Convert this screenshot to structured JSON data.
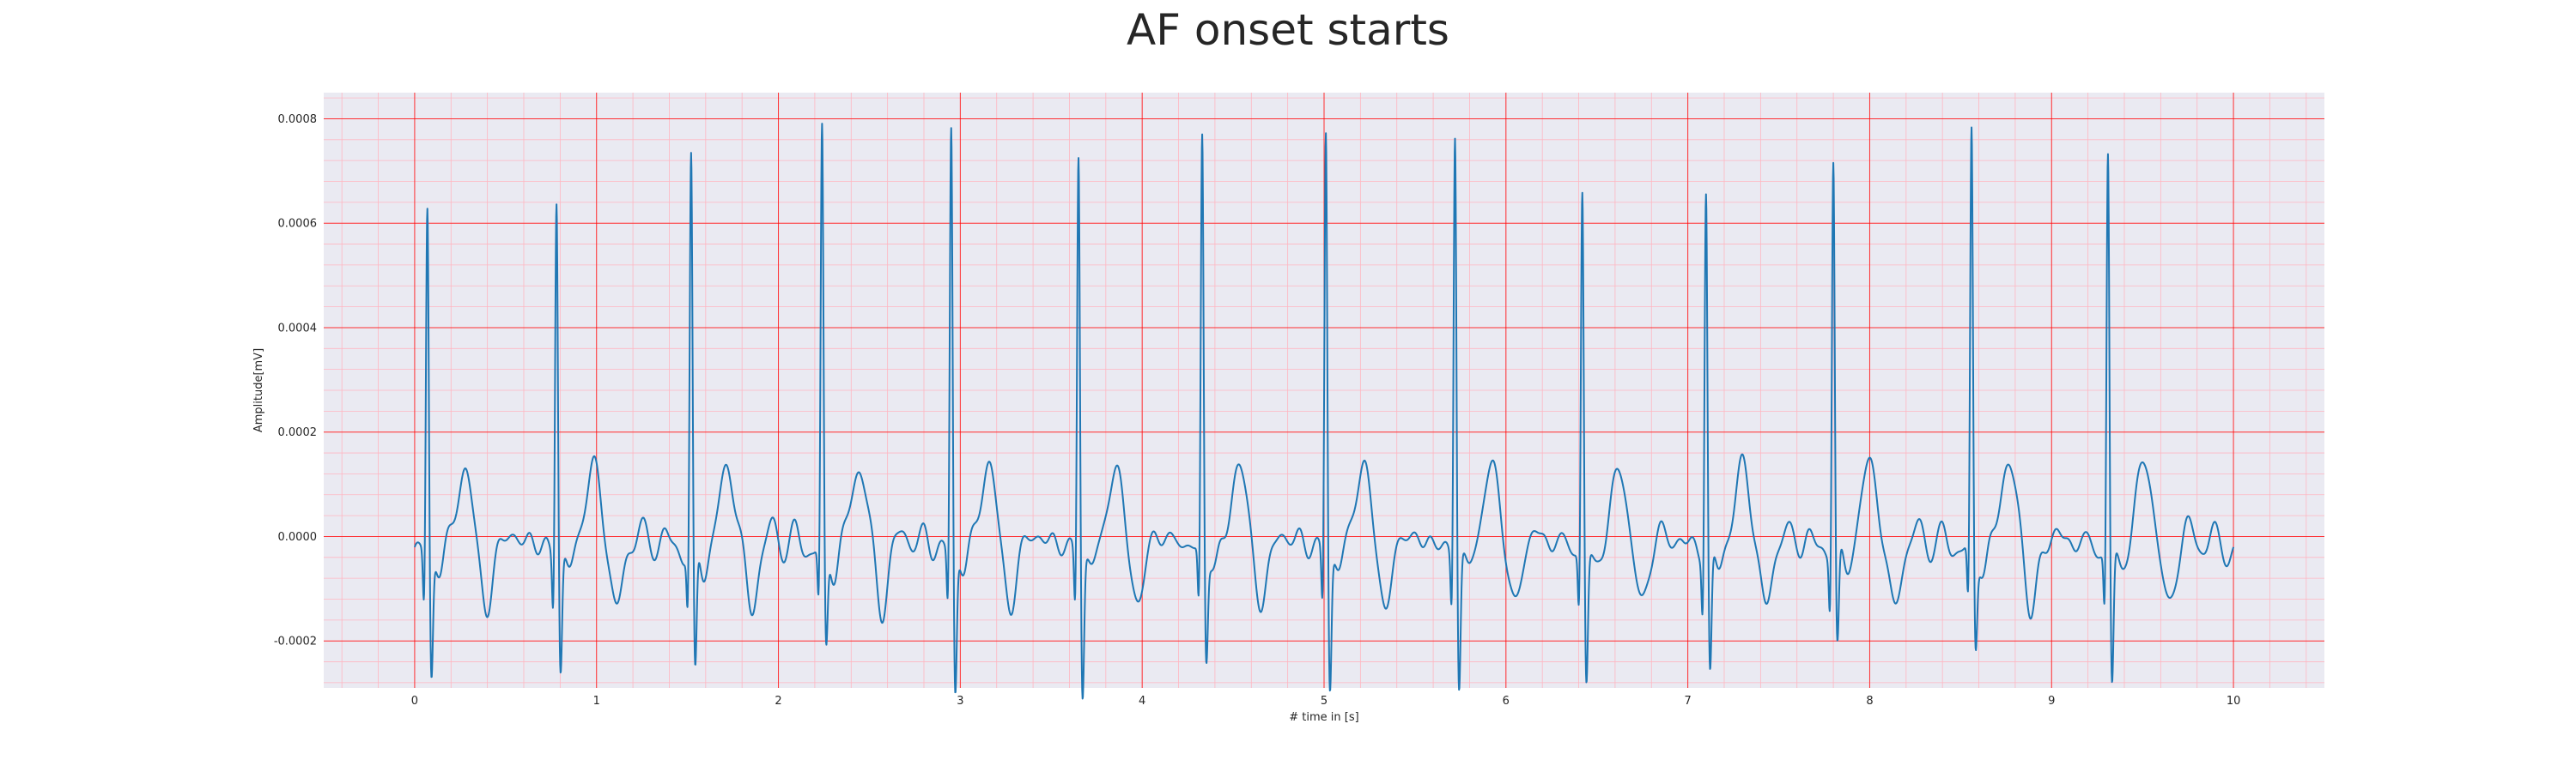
{
  "chart_data": {
    "type": "line",
    "title": "AF onset starts",
    "xlabel": "# time in [s]",
    "ylabel": "Amplitude[mV]",
    "xlim": [
      -0.5,
      10.5
    ],
    "ylim": [
      -0.00029,
      0.00085
    ],
    "x_ticks": [
      0,
      1,
      2,
      3,
      4,
      5,
      6,
      7,
      8,
      9,
      10
    ],
    "x_tick_labels": [
      "0",
      "1",
      "2",
      "3",
      "4",
      "5",
      "6",
      "7",
      "8",
      "9",
      "10"
    ],
    "y_ticks": [
      -0.0002,
      0.0,
      0.0002,
      0.0004,
      0.0006,
      0.0008
    ],
    "y_tick_labels": [
      "-0.0002",
      "0.0000",
      "0.0002",
      "0.0004",
      "0.0006",
      "0.0008"
    ],
    "grid": {
      "major": true,
      "minor": true
    },
    "beats": [
      {
        "t": 0.07,
        "r_peak": 0.00064,
        "s_trough": -0.00021,
        "t_wave": 0.00012
      },
      {
        "t": 0.78,
        "r_peak": 0.00067,
        "s_trough": -0.0002,
        "t_wave": 0.00013
      },
      {
        "t": 1.52,
        "r_peak": 0.00073,
        "s_trough": -0.00022,
        "t_wave": 0.00013
      },
      {
        "t": 2.24,
        "r_peak": 0.00078,
        "s_trough": -0.00016,
        "t_wave": 0.00013
      },
      {
        "t": 2.95,
        "r_peak": 0.0008,
        "s_trough": -0.00024,
        "t_wave": 0.00013
      },
      {
        "t": 3.65,
        "r_peak": 0.00076,
        "s_trough": -0.00024,
        "t_wave": 0.00012
      },
      {
        "t": 4.33,
        "r_peak": 0.00078,
        "s_trough": -0.00017,
        "t_wave": 0.00013
      },
      {
        "t": 5.01,
        "r_peak": 0.0008,
        "s_trough": -0.00023,
        "t_wave": 0.00013
      },
      {
        "t": 5.72,
        "r_peak": 0.0008,
        "s_trough": -0.00023,
        "t_wave": 0.00013
      },
      {
        "t": 6.42,
        "r_peak": 0.00068,
        "s_trough": -0.00022,
        "t_wave": 0.00012
      },
      {
        "t": 7.1,
        "r_peak": 0.00068,
        "s_trough": -0.00021,
        "t_wave": 0.00013
      },
      {
        "t": 7.8,
        "r_peak": 0.00074,
        "s_trough": -0.00016,
        "t_wave": 0.00014
      },
      {
        "t": 8.56,
        "r_peak": 0.00078,
        "s_trough": -0.00015,
        "t_wave": 0.00014
      },
      {
        "t": 9.31,
        "r_peak": 0.00075,
        "s_trough": -0.00023,
        "t_wave": 0.00014
      }
    ],
    "t_end": 10.0,
    "line_color": "#1f77b4",
    "background_color": "#eaeaf2",
    "major_grid_color": "#ff0000",
    "minor_grid_color": "#ffb6c1"
  }
}
